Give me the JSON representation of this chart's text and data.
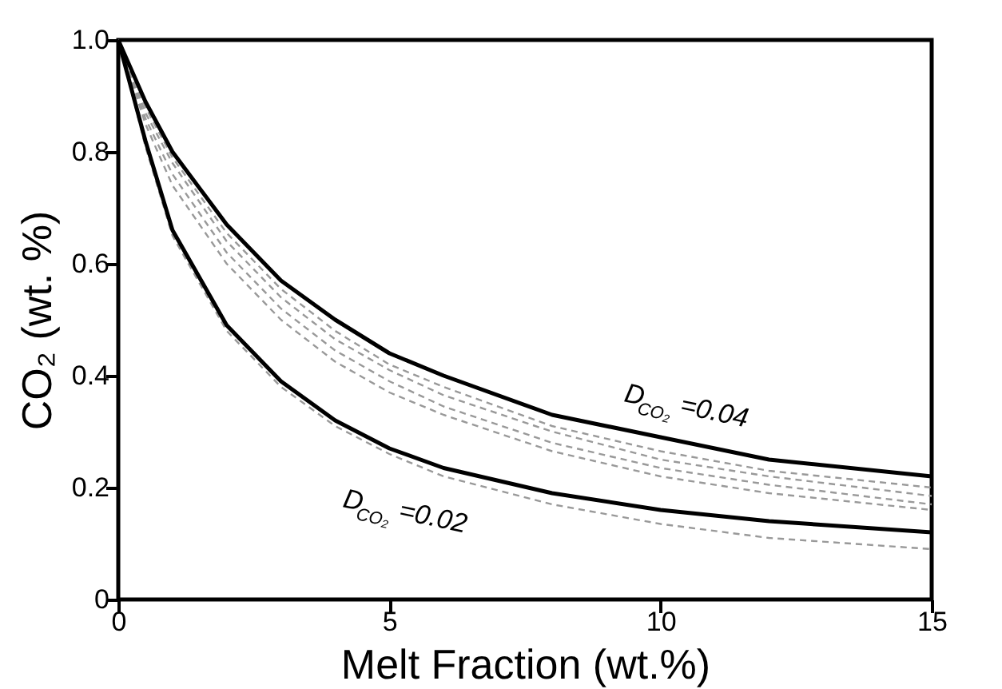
{
  "chart_data": {
    "type": "line",
    "xlabel": "Melt Fraction (wt.%)",
    "ylabel": "CO₂ (wt. %)",
    "x": [
      0,
      0.5,
      1,
      2,
      3,
      4,
      5,
      6,
      8,
      10,
      12,
      15
    ],
    "series": [
      {
        "color": "#999999",
        "line_style": "dashed",
        "values": [
          1.0,
          0.88,
          0.79,
          0.655,
          0.555,
          0.48,
          0.42,
          0.38,
          0.31,
          0.265,
          0.23,
          0.2
        ]
      },
      {
        "color": "#999999",
        "line_style": "dashed",
        "values": [
          1.0,
          0.87,
          0.78,
          0.64,
          0.54,
          0.465,
          0.41,
          0.365,
          0.3,
          0.25,
          0.22,
          0.185
        ]
      },
      {
        "color": "#999999",
        "line_style": "dashed",
        "values": [
          1.0,
          0.86,
          0.76,
          0.62,
          0.52,
          0.445,
          0.39,
          0.345,
          0.28,
          0.235,
          0.205,
          0.17
        ]
      },
      {
        "color": "#999999",
        "line_style": "dashed",
        "values": [
          1.0,
          0.85,
          0.74,
          0.6,
          0.5,
          0.425,
          0.37,
          0.33,
          0.265,
          0.22,
          0.19,
          0.16
        ]
      },
      {
        "color": "#999999",
        "line_style": "dashed",
        "values": [
          1.0,
          0.81,
          0.65,
          0.48,
          0.38,
          0.31,
          0.26,
          0.22,
          0.17,
          0.135,
          0.11,
          0.09
        ]
      },
      {
        "color": "#000000",
        "line_style": "solid",
        "values": [
          1.0,
          0.89,
          0.8,
          0.67,
          0.57,
          0.5,
          0.44,
          0.4,
          0.33,
          0.29,
          0.25,
          0.22
        ]
      },
      {
        "color": "#000000",
        "line_style": "solid",
        "values": [
          1.0,
          0.82,
          0.66,
          0.49,
          0.39,
          0.32,
          0.27,
          0.235,
          0.19,
          0.16,
          0.14,
          0.12
        ]
      }
    ],
    "annotations": [
      "D$_{CO₂}$=0.04",
      "D$_{CO₂}$=0.02"
    ],
    "xlim": [
      0,
      15
    ],
    "xticks": [
      0,
      5,
      10,
      15
    ],
    "ylim": [
      0,
      1.0
    ],
    "yticks": [
      0,
      0.2,
      0.4,
      0.6,
      0.8,
      {
        "value": 1.0,
        "label": "1.0"
      }
    ],
    "grid": false,
    "marker": "none"
  }
}
